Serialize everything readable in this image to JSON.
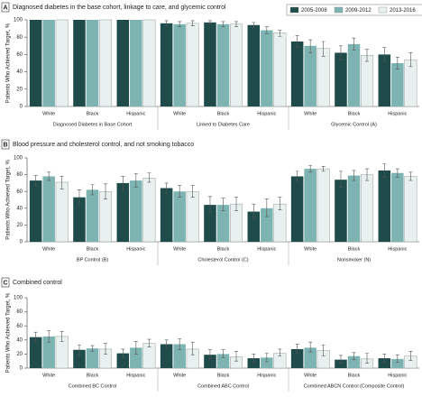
{
  "chart_data": [
    {
      "type": "bar",
      "panel": "A",
      "title": "Diagnosed diabetes in the base cohort, linkage to care, and glycemic control",
      "ylabel": "Patients Who Achieved Target, %",
      "ylim": [
        0,
        100
      ],
      "yticks": [
        0,
        20,
        40,
        60,
        80,
        100
      ],
      "groups": [
        {
          "name": "Diagnosed Diabetes in Base Cohort",
          "categories": [
            "White",
            "Black",
            "Hispanic"
          ]
        },
        {
          "name": "Linked to Diabetes Care",
          "categories": [
            "White",
            "Black",
            "Hispanic"
          ]
        },
        {
          "name": "Glycemic Control (A)",
          "categories": [
            "White",
            "Black",
            "Hispanic"
          ]
        }
      ],
      "series": [
        {
          "name": "2005-2008",
          "color": "#1f4b4b",
          "values": [
            100,
            100,
            100,
            96,
            97,
            94,
            75,
            62,
            60
          ],
          "lower": [
            100,
            100,
            100,
            93,
            95,
            91,
            68,
            54,
            52
          ],
          "upper": [
            100,
            100,
            100,
            99,
            99,
            97,
            82,
            70,
            68
          ]
        },
        {
          "name": "2009-2012",
          "color": "#7db4b2",
          "values": [
            100,
            100,
            100,
            95,
            95,
            88,
            70,
            72,
            50
          ],
          "lower": [
            100,
            100,
            100,
            92,
            92,
            84,
            62,
            65,
            43
          ],
          "upper": [
            100,
            100,
            100,
            98,
            98,
            92,
            77,
            79,
            57
          ]
        },
        {
          "name": "2013-2016",
          "color": "#e9f1f0",
          "values": [
            100,
            100,
            100,
            96,
            95,
            85,
            67,
            59,
            54
          ],
          "lower": [
            100,
            100,
            100,
            93,
            92,
            81,
            58,
            52,
            46
          ],
          "upper": [
            100,
            100,
            100,
            99,
            98,
            88,
            75,
            66,
            62
          ]
        }
      ]
    },
    {
      "type": "bar",
      "panel": "B",
      "title": "Blood pressure and cholesterol control, and not smoking tobacco",
      "ylabel": "Patients Who Achieved Target, %",
      "ylim": [
        0,
        100
      ],
      "yticks": [
        0,
        20,
        40,
        60,
        80,
        100
      ],
      "groups": [
        {
          "name": "BP Control (B)",
          "categories": [
            "White",
            "Black",
            "Hispanic"
          ]
        },
        {
          "name": "Cholesterol Control (C)",
          "categories": [
            "White",
            "Black",
            "Hispanic"
          ]
        },
        {
          "name": "Nonsmoker (N)",
          "categories": [
            "White",
            "Black",
            "Hispanic"
          ]
        }
      ],
      "series": [
        {
          "color": "#1f4b4b",
          "values": [
            73,
            53,
            70,
            64,
            44,
            36,
            78,
            74,
            85
          ],
          "lower": [
            67,
            44,
            61,
            58,
            35,
            28,
            73,
            65,
            77
          ],
          "upper": [
            79,
            62,
            78,
            70,
            54,
            45,
            84,
            84,
            93
          ]
        },
        {
          "color": "#7db4b2",
          "values": [
            78,
            62,
            73,
            60,
            44,
            40,
            87,
            79,
            82
          ],
          "lower": [
            73,
            56,
            65,
            53,
            37,
            30,
            83,
            73,
            77
          ],
          "upper": [
            83,
            68,
            81,
            67,
            52,
            51,
            91,
            85,
            87
          ]
        },
        {
          "color": "#e9f1f0",
          "values": [
            71,
            60,
            76,
            60,
            45,
            45,
            87,
            80,
            78
          ],
          "lower": [
            63,
            51,
            71,
            53,
            37,
            38,
            84,
            73,
            73
          ],
          "upper": [
            78,
            69,
            82,
            67,
            53,
            53,
            90,
            87,
            83
          ]
        }
      ]
    },
    {
      "type": "bar",
      "panel": "C",
      "title": "Combined control",
      "ylabel": "Patients Who Achieved Target, %",
      "ylim": [
        0,
        100
      ],
      "yticks": [
        0,
        20,
        40,
        60,
        80,
        100
      ],
      "groups": [
        {
          "name": "Combined BC Control",
          "categories": [
            "White",
            "Black",
            "Hispanic"
          ]
        },
        {
          "name": "Combined ABC Control",
          "categories": [
            "White",
            "Black",
            "Hispanic"
          ]
        },
        {
          "name": "Combined ABCN Control (Composite Control)",
          "categories": [
            "White",
            "Black",
            "Hispanic"
          ]
        }
      ],
      "series": [
        {
          "color": "#1f4b4b",
          "values": [
            44,
            26,
            21,
            34,
            19,
            14,
            27,
            12,
            14
          ],
          "lower": [
            37,
            19,
            15,
            29,
            13,
            9,
            21,
            7,
            8
          ],
          "upper": [
            51,
            33,
            27,
            40,
            26,
            20,
            34,
            18,
            20
          ]
        },
        {
          "color": "#7db4b2",
          "values": [
            45,
            28,
            29,
            34,
            20,
            15,
            29,
            17,
            13
          ],
          "lower": [
            37,
            24,
            20,
            26,
            15,
            9,
            23,
            12,
            8
          ],
          "upper": [
            53,
            32,
            38,
            42,
            26,
            21,
            37,
            22,
            19
          ]
        },
        {
          "color": "#e9f1f0",
          "values": [
            45,
            27,
            35,
            27,
            16,
            21,
            25,
            13,
            17
          ],
          "lower": [
            38,
            20,
            30,
            19,
            10,
            17,
            17,
            7,
            11
          ],
          "upper": [
            52,
            35,
            41,
            37,
            24,
            27,
            33,
            21,
            24
          ]
        }
      ]
    }
  ]
}
